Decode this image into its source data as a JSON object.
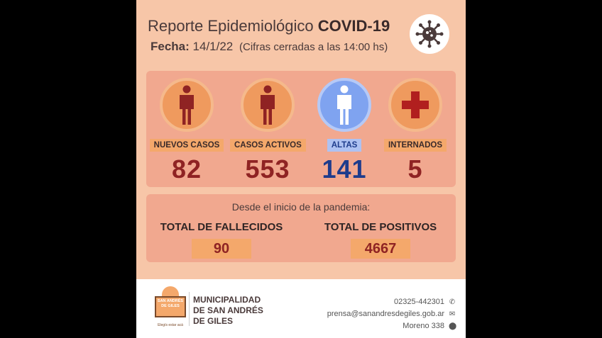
{
  "header": {
    "title_prefix": "Reporte Epidemiológico",
    "title_bold": "COVID-19",
    "date_label": "Fecha:",
    "date_value": "14/1/22",
    "date_note": "(Cifras cerradas a las 14:00 hs)"
  },
  "stats": [
    {
      "label": "NUEVOS CASOS",
      "value": "82",
      "icon": "person-icon"
    },
    {
      "label": "CASOS ACTIVOS",
      "value": "553",
      "icon": "person-icon"
    },
    {
      "label": "ALTAS",
      "value": "141",
      "icon": "person-icon"
    },
    {
      "label": "INTERNADOS",
      "value": "5",
      "icon": "medical-cross-icon"
    }
  ],
  "totals": {
    "since": "Desde el inicio de la pandemia:",
    "deaths_label": "TOTAL DE FALLECIDOS",
    "deaths_value": "90",
    "positives_label": "TOTAL DE POSITIVOS",
    "positives_value": "4667"
  },
  "footer": {
    "logo_text": "SAN ANDRÉS DE GILES",
    "logo_tagline": "Elegís estar acá",
    "municipality_line1": "MUNICIPALIDAD",
    "municipality_line2": "DE SAN ANDRÉS",
    "municipality_line3": "DE GILES",
    "phone": "02325-442301",
    "email": "prensa@sanandresdegiles.gob.ar",
    "address": "Moreno 338"
  },
  "colors": {
    "background": "#f7c6a8",
    "panel": "#f1a88f",
    "accent_orange": "#f4a86b",
    "value_red": "#8f2323",
    "value_blue": "#1e3c8c"
  }
}
